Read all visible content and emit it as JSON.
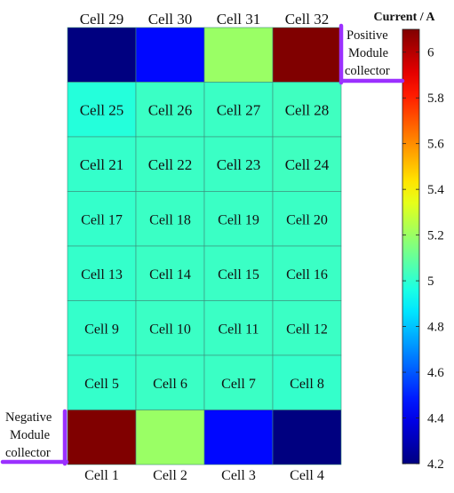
{
  "chart_data": {
    "type": "heatmap",
    "title": "",
    "xlabel": "",
    "ylabel": "",
    "colorbar": {
      "label": "Current / A",
      "min": 4.2,
      "max": 6.1,
      "ticks": [
        "4.2",
        "4.4",
        "4.6",
        "4.8",
        "5",
        "5.2",
        "5.4",
        "5.6",
        "5.8",
        "6"
      ],
      "colormap": "jet"
    },
    "columns": 4,
    "rows": [
      [
        {
          "label": "Cell 29",
          "value": 4.2
        },
        {
          "label": "Cell 30",
          "value": 4.45
        },
        {
          "label": "Cell 31",
          "value": 5.2
        },
        {
          "label": "Cell 32",
          "value": 6.1
        }
      ],
      [
        {
          "label": "Cell 25",
          "value": 4.98
        },
        {
          "label": "Cell 26",
          "value": 5.02
        },
        {
          "label": "Cell 27",
          "value": 5.02
        },
        {
          "label": "Cell 28",
          "value": 5.03
        }
      ],
      [
        {
          "label": "Cell 21",
          "value": 5.01
        },
        {
          "label": "Cell 22",
          "value": 5.02
        },
        {
          "label": "Cell 23",
          "value": 5.02
        },
        {
          "label": "Cell 24",
          "value": 5.03
        }
      ],
      [
        {
          "label": "Cell 17",
          "value": 5.01
        },
        {
          "label": "Cell 18",
          "value": 5.02
        },
        {
          "label": "Cell 19",
          "value": 5.02
        },
        {
          "label": "Cell 20",
          "value": 5.02
        }
      ],
      [
        {
          "label": "Cell 13",
          "value": 5.01
        },
        {
          "label": "Cell 14",
          "value": 5.02
        },
        {
          "label": "Cell 15",
          "value": 5.02
        },
        {
          "label": "Cell 16",
          "value": 5.02
        }
      ],
      [
        {
          "label": "Cell 9",
          "value": 5.01
        },
        {
          "label": "Cell 10",
          "value": 5.02
        },
        {
          "label": "Cell 11",
          "value": 5.02
        },
        {
          "label": "Cell 12",
          "value": 5.02
        }
      ],
      [
        {
          "label": "Cell 5",
          "value": 5.01
        },
        {
          "label": "Cell 6",
          "value": 5.02
        },
        {
          "label": "Cell 7",
          "value": 5.02
        },
        {
          "label": "Cell 8",
          "value": 5.01
        }
      ],
      [
        {
          "label": "Cell 1",
          "value": 6.1
        },
        {
          "label": "Cell 2",
          "value": 5.2
        },
        {
          "label": "Cell 3",
          "value": 4.45
        },
        {
          "label": "Cell 4",
          "value": 4.2
        }
      ]
    ],
    "annotations": {
      "positive": [
        "Positive",
        "Module",
        "collector"
      ],
      "negative": [
        "Negative",
        "Module",
        "collector"
      ]
    },
    "colors": {
      "collector": "#9b30ff",
      "grid_line": "#3c8c7a"
    }
  }
}
